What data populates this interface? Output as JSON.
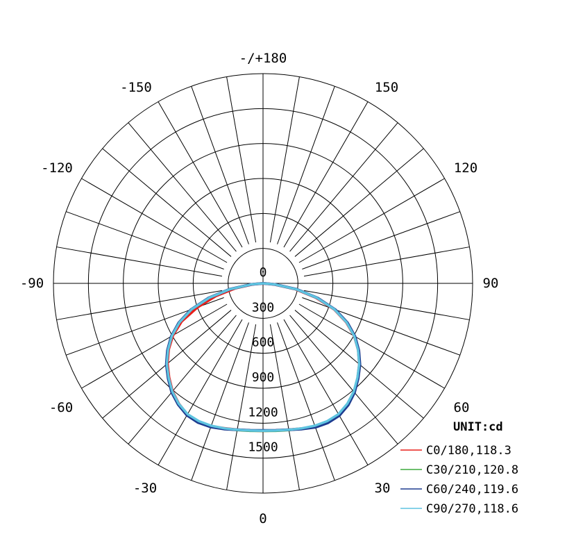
{
  "chart_data": {
    "type": "polar-line",
    "unit_label": "UNIT:cd",
    "angle_labels": [
      {
        "angle": 180,
        "text": "-/+180"
      },
      {
        "angle": -150,
        "text": "-150"
      },
      {
        "angle": 150,
        "text": "150"
      },
      {
        "angle": -120,
        "text": "-120"
      },
      {
        "angle": 120,
        "text": "120"
      },
      {
        "angle": -90,
        "text": "-90"
      },
      {
        "angle": 90,
        "text": "90"
      },
      {
        "angle": -60,
        "text": "-60"
      },
      {
        "angle": 60,
        "text": "60"
      },
      {
        "angle": -30,
        "text": "-30"
      },
      {
        "angle": 30,
        "text": "30"
      },
      {
        "angle": 0,
        "text": "0"
      }
    ],
    "radial_ticks": [
      0,
      300,
      600,
      900,
      1200,
      1500
    ],
    "radial_tick_labels": [
      "0",
      "300",
      "600",
      "900",
      "1200",
      "1500"
    ],
    "radial_max": 1800,
    "angular_step": 10,
    "series": [
      {
        "name": "C0/180,118.3",
        "color": "#e8201c",
        "angles": [
          0,
          5,
          10,
          15,
          20,
          25,
          30,
          35,
          40,
          45,
          50,
          55,
          60,
          65,
          70,
          75,
          80,
          85,
          90
        ],
        "values": [
          1265,
          1268,
          1275,
          1290,
          1310,
          1318,
          1305,
          1270,
          1218,
          1150,
          1080,
          998,
          905,
          790,
          650,
          470,
          280,
          95,
          0
        ],
        "values_neg": [
          1265,
          1268,
          1275,
          1288,
          1305,
          1315,
          1300,
          1262,
          1210,
          1142,
          1072,
          990,
          895,
          772,
          600,
          420,
          245,
          85,
          0
        ]
      },
      {
        "name": "C30/210,120.8",
        "color": "#3daa3d",
        "angles": [
          0,
          5,
          10,
          15,
          20,
          25,
          30,
          35,
          40,
          45,
          50,
          55,
          60,
          65,
          70,
          75,
          80,
          85,
          90
        ],
        "values": [
          1268,
          1272,
          1280,
          1292,
          1305,
          1310,
          1300,
          1266,
          1215,
          1150,
          1082,
          1000,
          908,
          795,
          655,
          480,
          290,
          100,
          0
        ],
        "values_neg": [
          1268,
          1272,
          1280,
          1292,
          1305,
          1310,
          1300,
          1266,
          1215,
          1150,
          1082,
          1000,
          908,
          795,
          655,
          480,
          290,
          100,
          0
        ]
      },
      {
        "name": "C60/240,119.6",
        "color": "#1d3b8f",
        "angles": [
          0,
          5,
          10,
          15,
          20,
          25,
          30,
          35,
          40,
          45,
          50,
          55,
          60,
          65,
          70,
          75,
          80,
          85,
          90
        ],
        "values": [
          1262,
          1266,
          1276,
          1294,
          1314,
          1320,
          1310,
          1275,
          1222,
          1155,
          1086,
          1004,
          912,
          800,
          660,
          485,
          295,
          102,
          0
        ],
        "values_neg": [
          1262,
          1266,
          1276,
          1294,
          1312,
          1318,
          1306,
          1270,
          1220,
          1152,
          1084,
          1002,
          910,
          798,
          658,
          484,
          294,
          101,
          0
        ]
      },
      {
        "name": "C90/270,118.6",
        "color": "#5fc4e0",
        "angles": [
          0,
          5,
          10,
          15,
          20,
          25,
          30,
          35,
          40,
          45,
          50,
          55,
          60,
          65,
          70,
          75,
          80,
          85,
          90
        ],
        "values": [
          1265,
          1268,
          1275,
          1288,
          1300,
          1305,
          1296,
          1262,
          1212,
          1146,
          1078,
          996,
          904,
          792,
          652,
          478,
          288,
          98,
          0
        ],
        "values_neg": [
          1265,
          1268,
          1275,
          1288,
          1300,
          1305,
          1296,
          1262,
          1212,
          1146,
          1078,
          996,
          904,
          792,
          652,
          478,
          288,
          98,
          0
        ]
      }
    ]
  }
}
